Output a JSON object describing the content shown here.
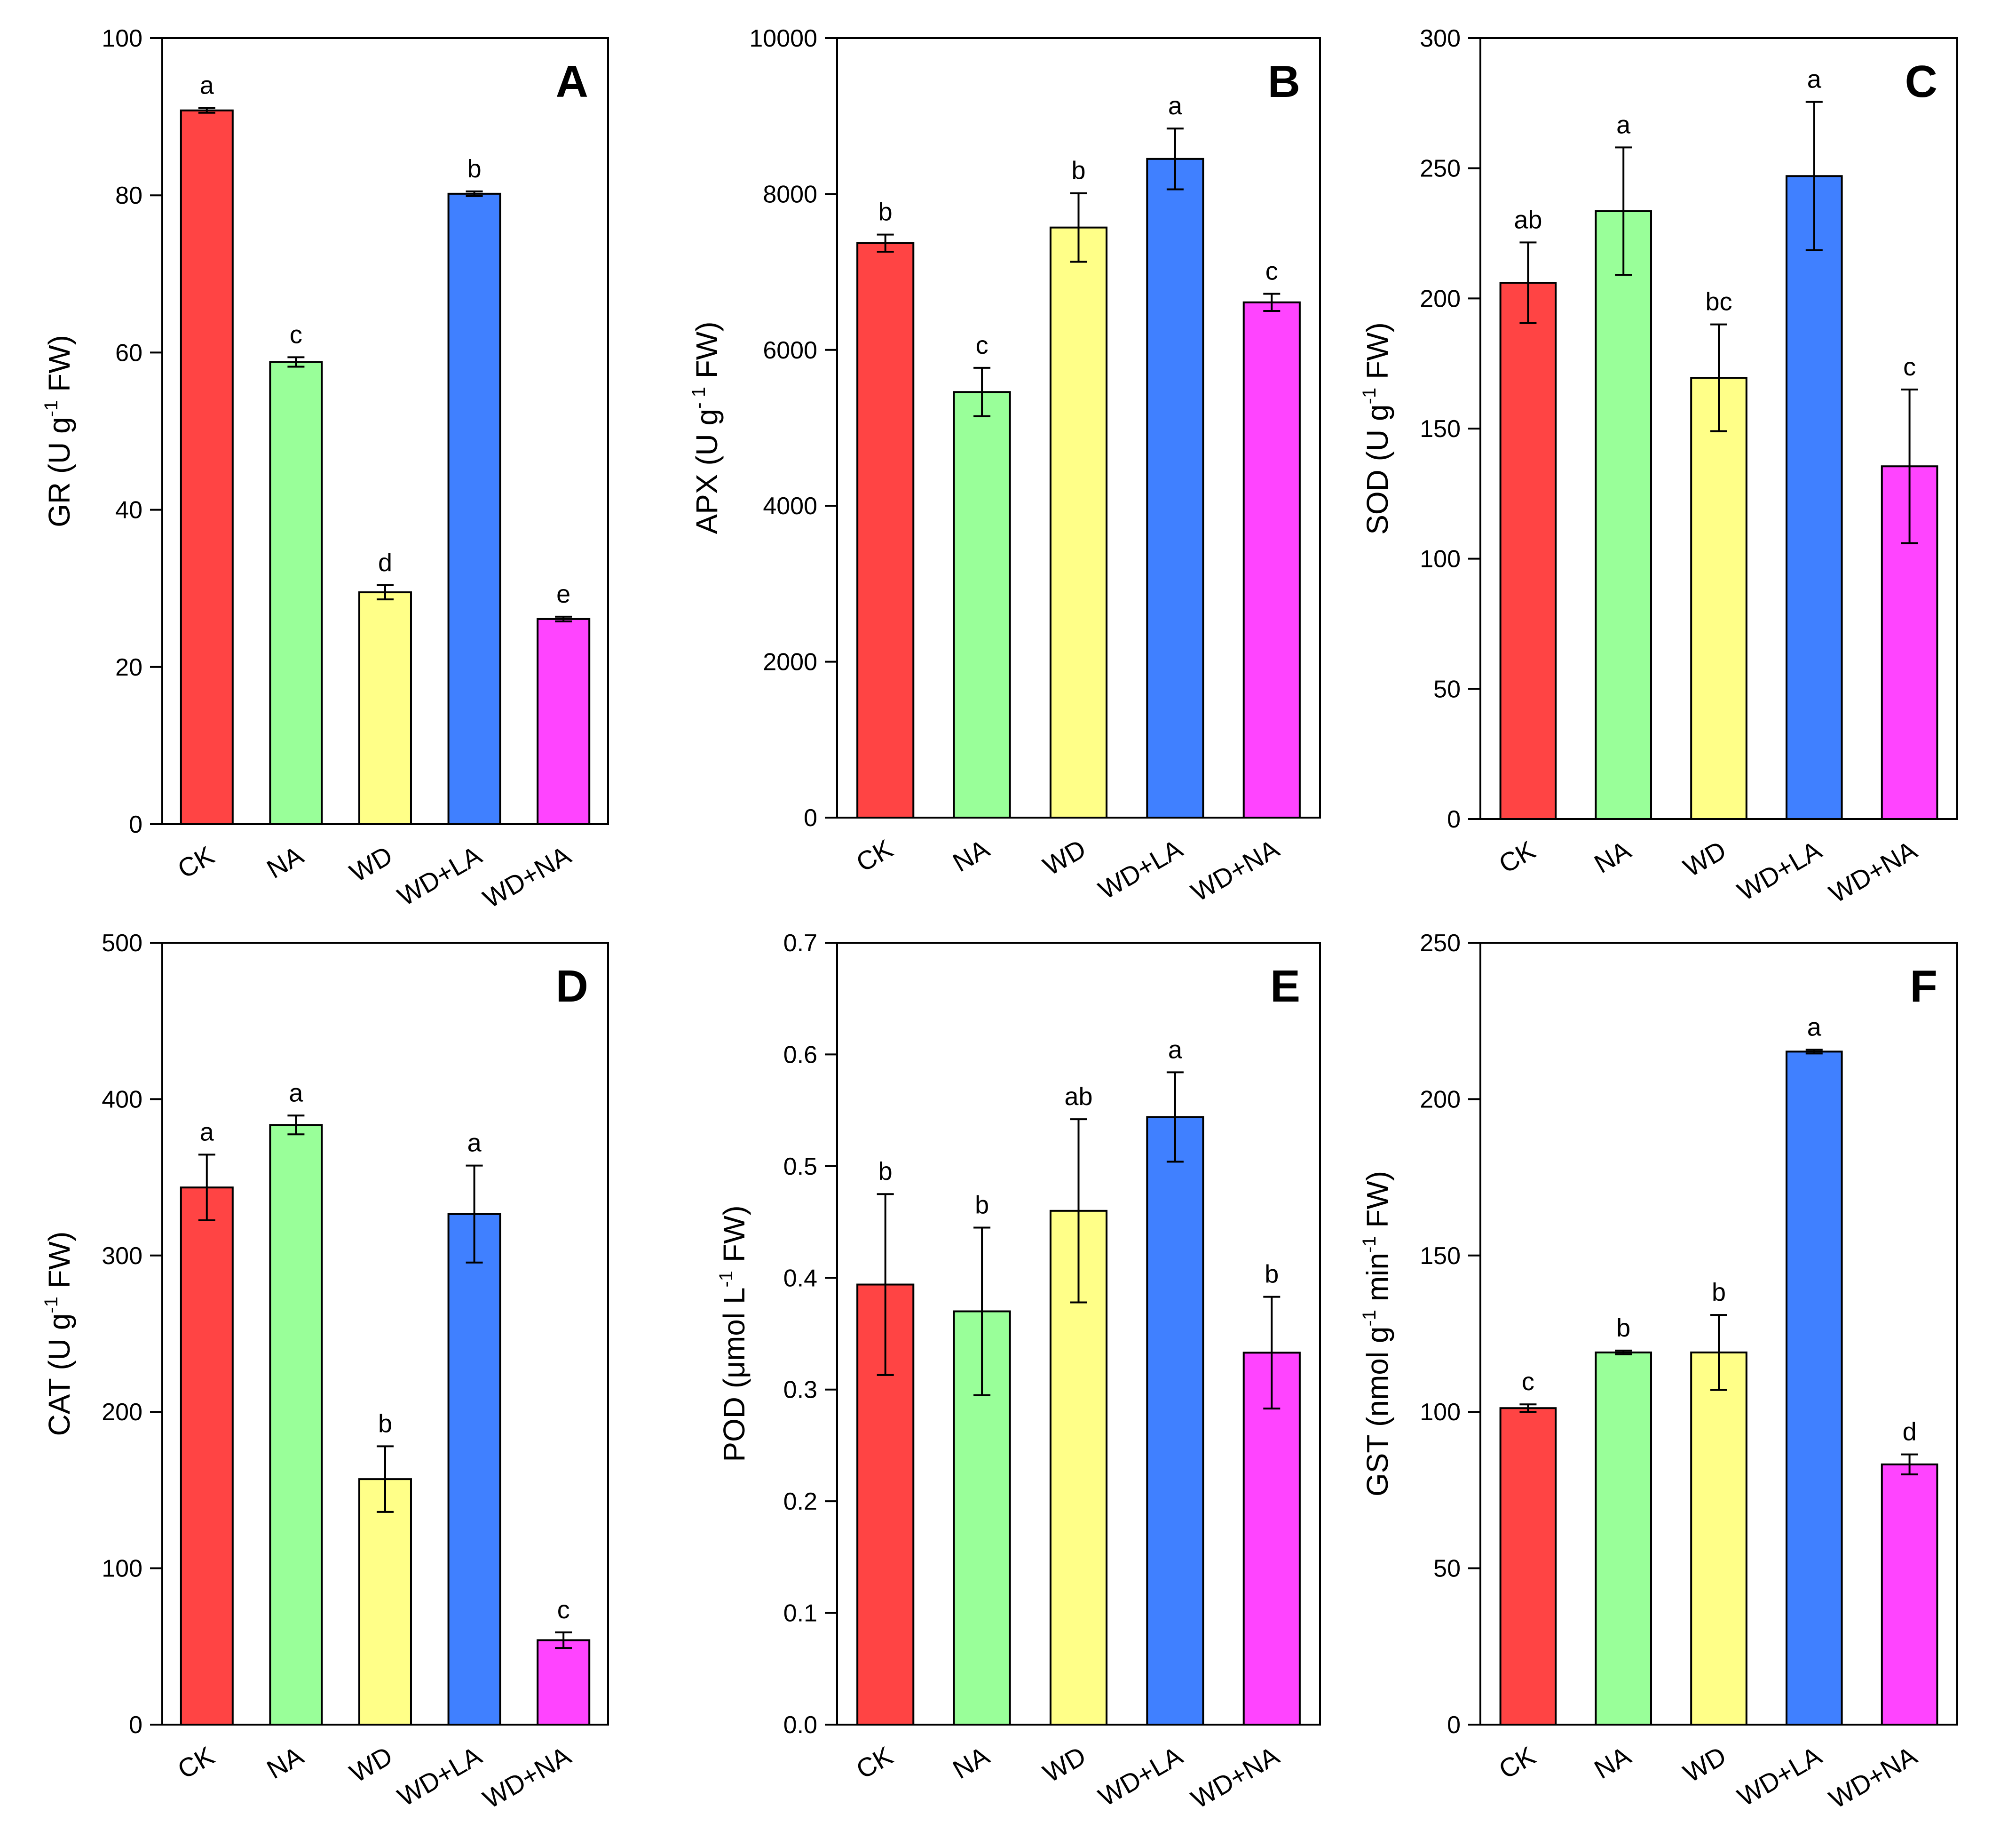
{
  "figure": {
    "colors": [
      "#FF4444",
      "#99FF99",
      "#FFFF88",
      "#4080FF",
      "#FF44FF"
    ]
  },
  "chart_data": [
    {
      "type": "bar",
      "panel": "A",
      "ylabel": "GR (U g-1 FW)",
      "ylabel_parts": {
        "pre": "GR (U g",
        "sup": "-1",
        "post": " FW)"
      },
      "ylim": [
        0,
        100
      ],
      "yticks": [
        "0",
        "20",
        "40",
        "60",
        "80",
        "100"
      ],
      "ytick_values": [
        0,
        20,
        40,
        60,
        80,
        100
      ],
      "categories": [
        "CK",
        "NA",
        "WD",
        "WD+LA",
        "WD+NA"
      ],
      "values": [
        90.8,
        58.8,
        29.5,
        80.2,
        26.1
      ],
      "errors": [
        0.3,
        0.6,
        0.9,
        0.3,
        0.3
      ],
      "letters": [
        "a",
        "c",
        "d",
        "b",
        "e"
      ]
    },
    {
      "type": "bar",
      "panel": "B",
      "ylabel": "APX (U g- 1 FW)",
      "ylabel_parts": {
        "pre": "APX (U g",
        "sup": "- 1",
        "post": " FW)"
      },
      "ylim": [
        0,
        10000
      ],
      "yticks": [
        "0",
        "2000",
        "4000",
        "6000",
        "8000",
        "10000"
      ],
      "ytick_values": [
        0,
        2000,
        4000,
        6000,
        8000,
        10000
      ],
      "categories": [
        "CK",
        "NA",
        "WD",
        "WD+LA",
        "WD+NA"
      ],
      "values": [
        7370,
        5460,
        7570,
        8450,
        6610
      ],
      "errors": [
        110,
        310,
        440,
        390,
        110
      ],
      "letters": [
        "b",
        "c",
        "b",
        "a",
        "c"
      ]
    },
    {
      "type": "bar",
      "panel": "C",
      "ylabel": "SOD (U g-1 FW)",
      "ylabel_parts": {
        "pre": "SOD (U g",
        "sup": "-1",
        "post": " FW)"
      },
      "ylim": [
        0,
        300
      ],
      "yticks": [
        "0",
        "50",
        "100",
        "150",
        "200",
        "250",
        "300"
      ],
      "ytick_values": [
        0,
        50,
        100,
        150,
        200,
        250,
        300
      ],
      "categories": [
        "CK",
        "NA",
        "WD",
        "WD+LA",
        "WD+NA"
      ],
      "values": [
        206,
        233.5,
        169.5,
        247,
        135.5
      ],
      "errors": [
        15.5,
        24.5,
        20.5,
        28.5,
        29.5
      ],
      "letters": [
        "ab",
        "a",
        "bc",
        "a",
        "c"
      ]
    },
    {
      "type": "bar",
      "panel": "D",
      "ylabel": "CAT (U g-1 FW)",
      "ylabel_parts": {
        "pre": "CAT (U g",
        "sup": "-1",
        "post": " FW)"
      },
      "ylim": [
        0,
        500
      ],
      "yticks": [
        "0",
        "100",
        "200",
        "300",
        "400",
        "500"
      ],
      "ytick_values": [
        0,
        100,
        200,
        300,
        400,
        500
      ],
      "categories": [
        "CK",
        "NA",
        "WD",
        "WD+LA",
        "WD+NA"
      ],
      "values": [
        343.5,
        383.5,
        157,
        326.5,
        54
      ],
      "errors": [
        21,
        6,
        21,
        31,
        5
      ],
      "letters": [
        "a",
        "a",
        "b",
        "a",
        "c"
      ]
    },
    {
      "type": "bar",
      "panel": "E",
      "ylabel": "POD (μmol L-1 FW)",
      "ylabel_parts": {
        "pre": "POD (μmol L",
        "sup": "-1",
        "post": " FW)"
      },
      "ylim": [
        0,
        0.7
      ],
      "yticks": [
        "0.0",
        "0.1",
        "0.2",
        "0.3",
        "0.4",
        "0.5",
        "0.6",
        "0.7"
      ],
      "ytick_values": [
        0,
        0.1,
        0.2,
        0.3,
        0.4,
        0.5,
        0.6,
        0.7
      ],
      "categories": [
        "CK",
        "NA",
        "WD",
        "WD+LA",
        "WD+NA"
      ],
      "values": [
        0.394,
        0.37,
        0.46,
        0.544,
        0.333
      ],
      "errors": [
        0.081,
        0.075,
        0.082,
        0.04,
        0.05
      ],
      "letters": [
        "b",
        "b",
        "ab",
        "a",
        "b"
      ]
    },
    {
      "type": "bar",
      "panel": "F",
      "ylabel": "GST (nmol g-1 min-1 FW)",
      "ylabel_parts": {
        "pre": "GST (nmol g",
        "sup": "-1",
        "mid": " min",
        "sup2": "-1",
        "post": " FW)"
      },
      "ylim": [
        0,
        250
      ],
      "yticks": [
        "0",
        "50",
        "100",
        "150",
        "200",
        "250"
      ],
      "ytick_values": [
        0,
        50,
        100,
        150,
        200,
        250
      ],
      "categories": [
        "CK",
        "NA",
        "WD",
        "WD+LA",
        "WD+NA"
      ],
      "values": [
        101.2,
        119,
        119,
        215.2,
        83.2
      ],
      "errors": [
        1.2,
        0.6,
        12,
        0.6,
        3.2
      ],
      "letters": [
        "c",
        "b",
        "b",
        "a",
        "d"
      ]
    }
  ]
}
